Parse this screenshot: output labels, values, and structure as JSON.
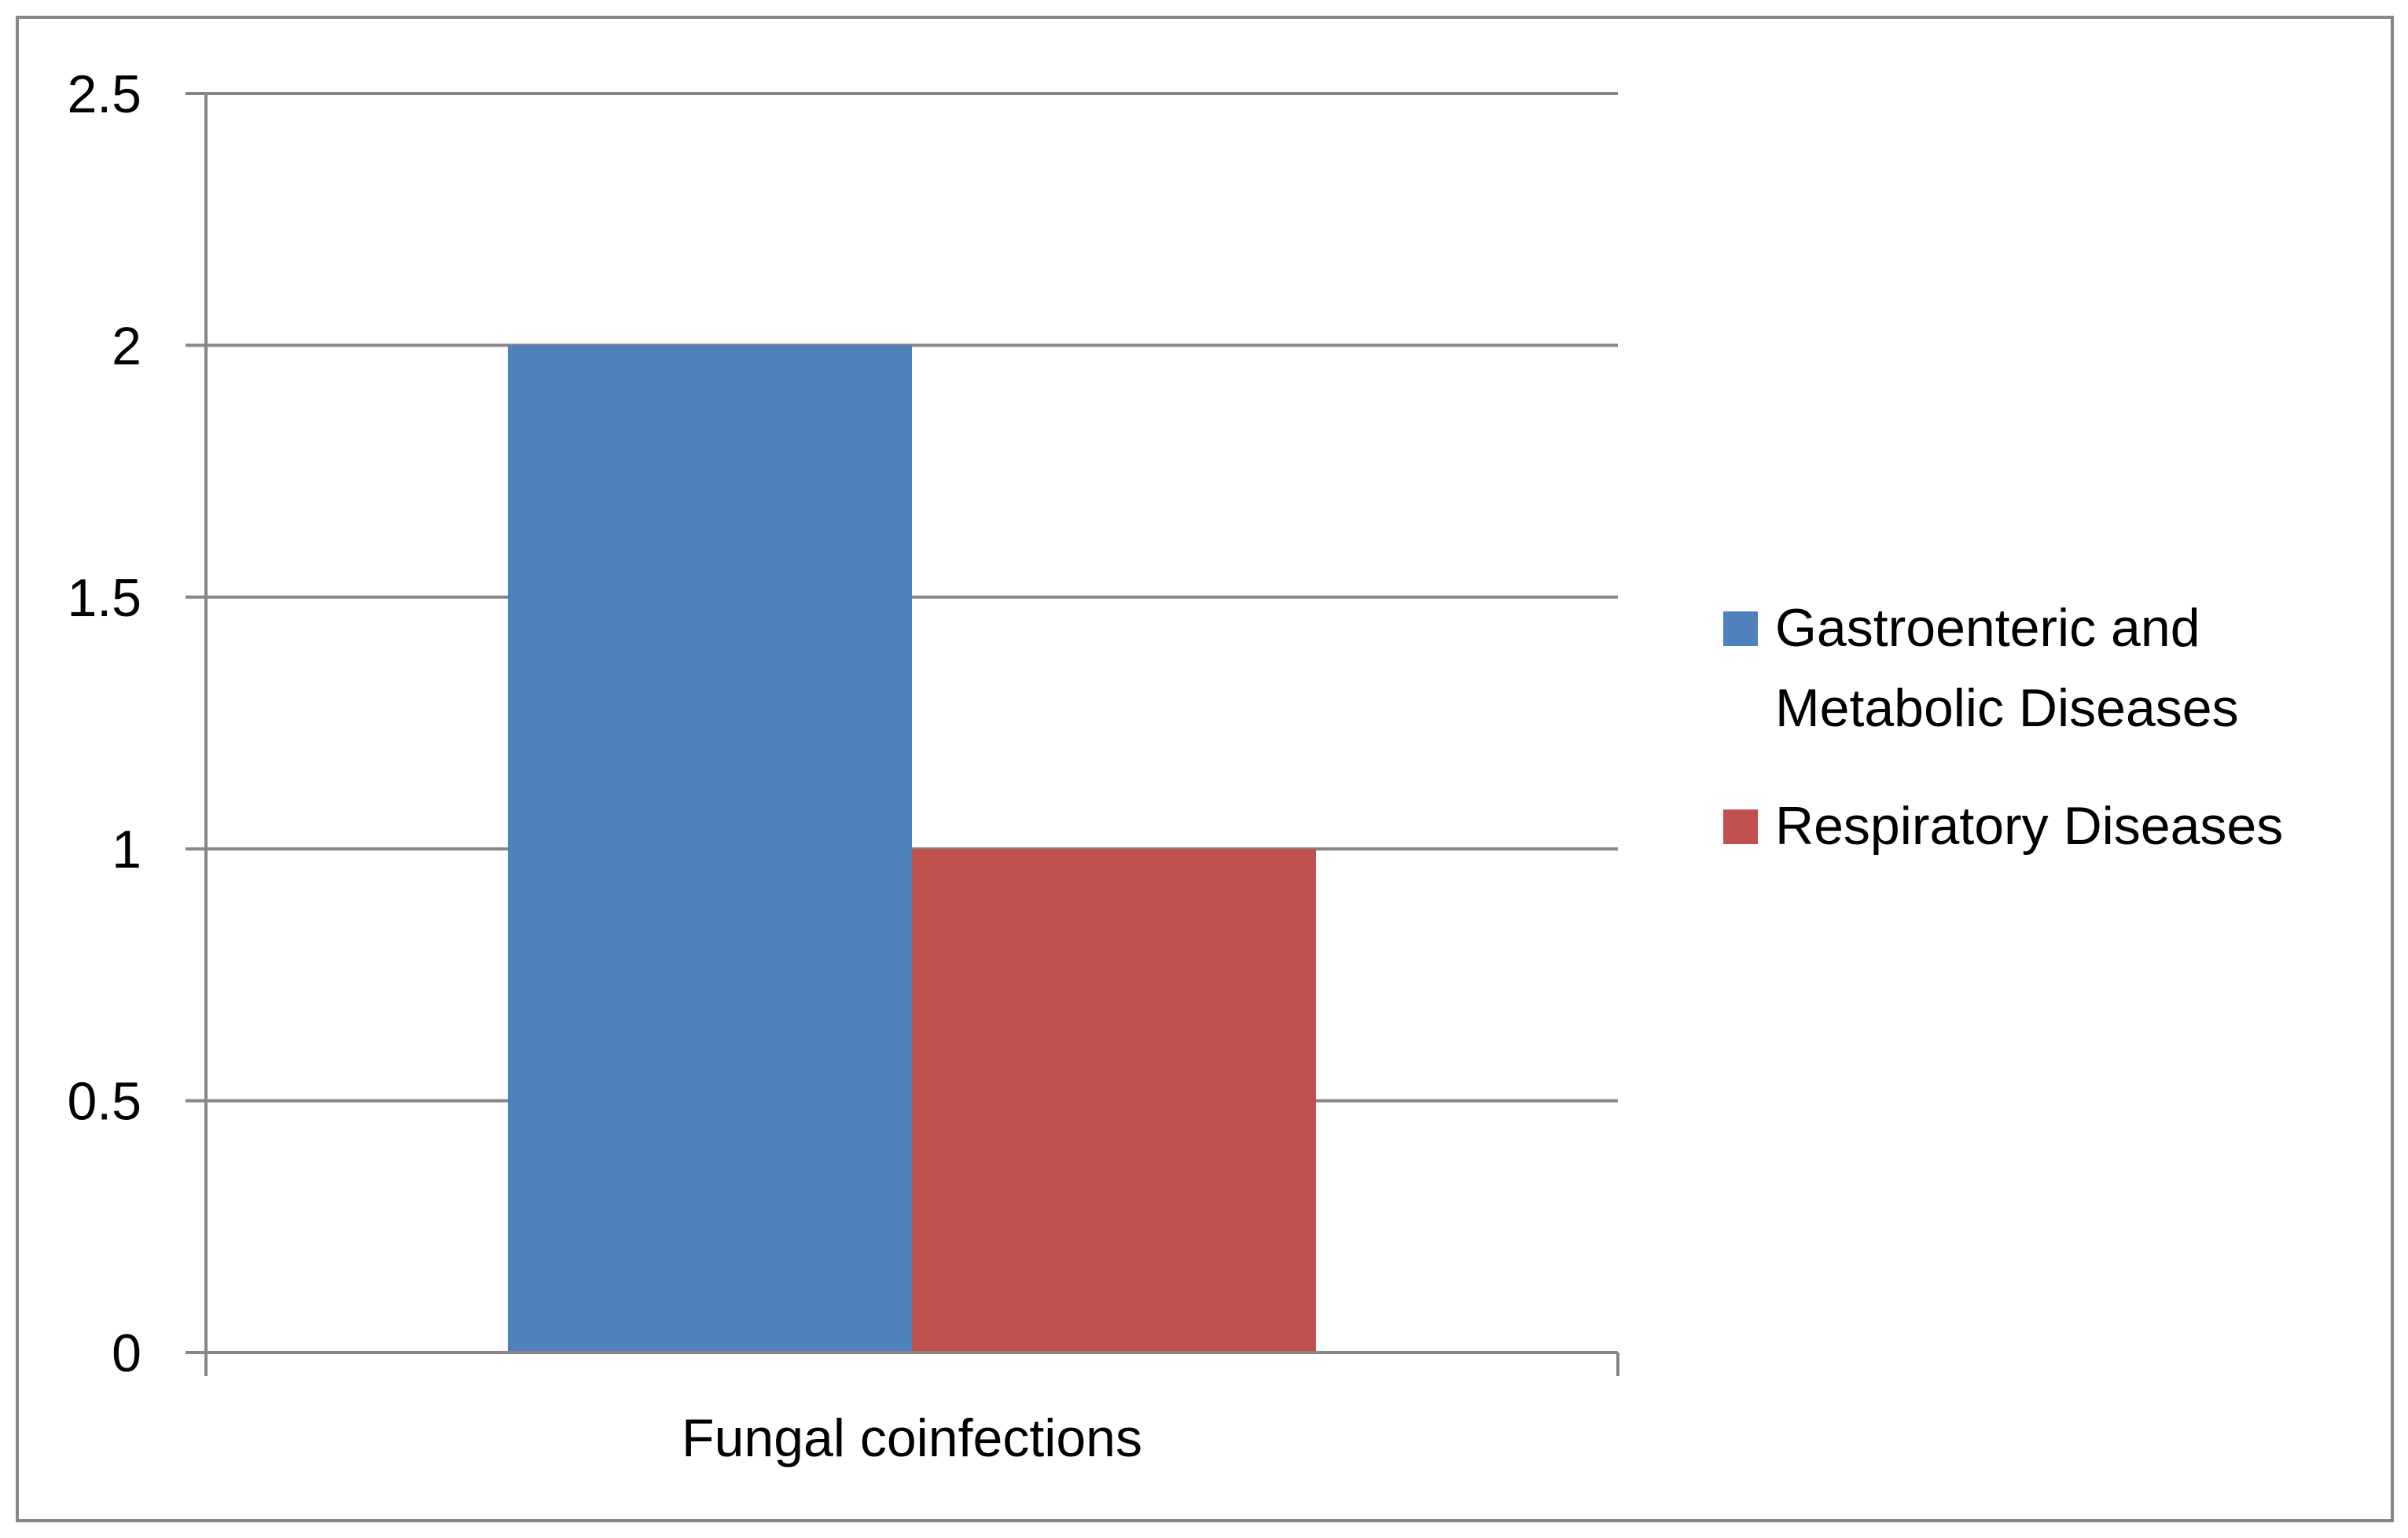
{
  "chart_data": {
    "type": "bar",
    "title": "",
    "xlabel": "",
    "ylabel": "",
    "categories": [
      "Fungal coinfections"
    ],
    "series": [
      {
        "name": "Gastroenteric and Metabolic Diseases",
        "values": [
          2
        ],
        "color": "#4F81BD"
      },
      {
        "name": "Respiratory Diseases",
        "values": [
          1
        ],
        "color": "#C0504D"
      }
    ],
    "ylim": [
      0,
      2.5
    ],
    "yticks": [
      "0",
      "0.5",
      "1",
      "1.5",
      "2",
      "2.5"
    ],
    "grid": true,
    "legend_position": "right"
  },
  "legend": {
    "items": [
      {
        "lines": [
          "Gastroenteric and",
          "Metabolic Diseases"
        ]
      },
      {
        "lines": [
          "Respiratory Diseases"
        ]
      }
    ]
  }
}
